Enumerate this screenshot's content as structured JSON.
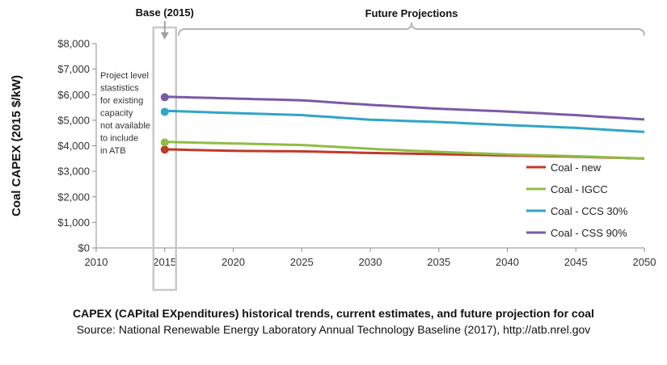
{
  "chart_data": {
    "type": "line",
    "ylabel": "Coal CAPEX (2015 $/kW)",
    "xlabel": "",
    "xlim": [
      2010,
      2050
    ],
    "ylim": [
      0,
      8000
    ],
    "x_ticks": [
      2010,
      2015,
      2020,
      2025,
      2030,
      2035,
      2040,
      2045,
      2050
    ],
    "y_ticks": [
      "$0",
      "$1,000",
      "$2,000",
      "$3,000",
      "$4,000",
      "$5,000",
      "$6,000",
      "$7,000",
      "$8,000"
    ],
    "y_tick_values": [
      0,
      1000,
      2000,
      3000,
      4000,
      5000,
      6000,
      7000,
      8000
    ],
    "grid": "none",
    "legend_position": "right",
    "base_label": "Base (2015)",
    "future_label": "Future Projections",
    "note_lines": [
      "Project level",
      "stastistics",
      "for existing",
      "capacity",
      "not available",
      "to include",
      "in ATB"
    ],
    "series": [
      {
        "name": "Coal - new",
        "color": "#c0392b",
        "base_point": [
          2015,
          3850
        ],
        "x": [
          2015,
          2020,
          2025,
          2030,
          2035,
          2040,
          2045,
          2050
        ],
        "values": [
          3860,
          3800,
          3780,
          3720,
          3670,
          3620,
          3570,
          3500
        ]
      },
      {
        "name": "Coal - IGCC",
        "color": "#8fbc45",
        "base_point": [
          2015,
          4130
        ],
        "x": [
          2015,
          2020,
          2025,
          2030,
          2035,
          2040,
          2045,
          2050
        ],
        "values": [
          4150,
          4090,
          4030,
          3880,
          3760,
          3660,
          3590,
          3500
        ]
      },
      {
        "name": "Coal - CCS 30%",
        "color": "#2fa5c8",
        "base_point": [
          2015,
          5330
        ],
        "x": [
          2015,
          2020,
          2025,
          2030,
          2035,
          2040,
          2045,
          2050
        ],
        "values": [
          5370,
          5280,
          5200,
          5020,
          4930,
          4810,
          4700,
          4540
        ]
      },
      {
        "name": "Coal - CSS 90%",
        "color": "#7b5aa6",
        "base_point": [
          2015,
          5900
        ],
        "x": [
          2015,
          2020,
          2025,
          2030,
          2035,
          2040,
          2045,
          2050
        ],
        "values": [
          5920,
          5850,
          5780,
          5600,
          5450,
          5340,
          5200,
          5030
        ]
      }
    ]
  },
  "caption": {
    "title": "CAPEX (CAPital EXpenditures) historical trends, current estimates, and future projection for coal",
    "source": "Source:  National Renewable Energy Laboratory Annual Technology Baseline (2017), http://atb.nrel.gov"
  }
}
